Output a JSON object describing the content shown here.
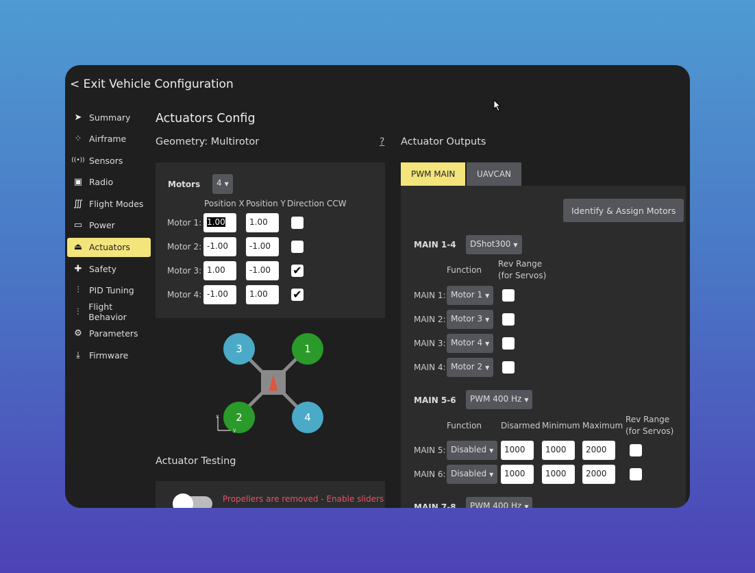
{
  "header": {
    "exit_label": "< Exit Vehicle Configuration"
  },
  "sidebar": {
    "items": [
      {
        "label": "Summary",
        "icon": "paper-plane-icon",
        "glyph": "➤"
      },
      {
        "label": "Airframe",
        "icon": "airframe-icon",
        "glyph": "⁘"
      },
      {
        "label": "Sensors",
        "icon": "sensors-icon",
        "glyph": "((•))"
      },
      {
        "label": "Radio",
        "icon": "radio-icon",
        "glyph": "▣"
      },
      {
        "label": "Flight Modes",
        "icon": "flight-modes-icon",
        "glyph": "∭"
      },
      {
        "label": "Power",
        "icon": "battery-icon",
        "glyph": "▭"
      },
      {
        "label": "Actuators",
        "icon": "actuators-icon",
        "glyph": "⏏"
      },
      {
        "label": "Safety",
        "icon": "first-aid-icon",
        "glyph": "✚"
      },
      {
        "label": "PID Tuning",
        "icon": "sliders-icon",
        "glyph": "⫶"
      },
      {
        "label": "Flight Behavior",
        "icon": "sliders-icon",
        "glyph": "⫶"
      },
      {
        "label": "Parameters",
        "icon": "gears-icon",
        "glyph": "⚙"
      },
      {
        "label": "Firmware",
        "icon": "download-icon",
        "glyph": "⤓"
      }
    ],
    "active": "Actuators"
  },
  "main": {
    "title": "Actuators Config",
    "geometry_title": "Geometry: Multirotor",
    "help": "?",
    "motors_label": "Motors",
    "motors_count": "4",
    "columns": [
      "Position X",
      "Position Y",
      "Direction CCW"
    ],
    "motors": [
      {
        "label": "Motor 1:",
        "x": "1.00",
        "y": "1.00",
        "ccw": false
      },
      {
        "label": "Motor 2:",
        "x": "-1.00",
        "y": "-1.00",
        "ccw": false
      },
      {
        "label": "Motor 3:",
        "x": "1.00",
        "y": "-1.00",
        "ccw": true
      },
      {
        "label": "Motor 4:",
        "x": "-1.00",
        "y": "1.00",
        "ccw": true
      }
    ],
    "diagram": {
      "rotors": [
        "3",
        "1",
        "2",
        "4"
      ],
      "axis_x": "x",
      "axis_y": "y",
      "cw_color": "#2a9a2a",
      "ccw_color": "#4aaac8"
    },
    "testing_title": "Actuator Testing",
    "testing_warning": "Propellers are removed - Enable sliders"
  },
  "outputs": {
    "title": "Actuator Outputs",
    "tabs": [
      "PWM MAIN",
      "UAVCAN"
    ],
    "active_tab": "PWM MAIN",
    "identify_button": "Identify & Assign Motors",
    "group1": {
      "label": "MAIN 1-4",
      "protocol": "DShot300",
      "col_function": "Function",
      "col_rev": "Rev Range",
      "col_rev2": "(for Servos)",
      "rows": [
        {
          "label": "MAIN 1:",
          "function": "Motor 1"
        },
        {
          "label": "MAIN 2:",
          "function": "Motor 3"
        },
        {
          "label": "MAIN 3:",
          "function": "Motor 4"
        },
        {
          "label": "MAIN 4:",
          "function": "Motor 2"
        }
      ]
    },
    "group2": {
      "label": "MAIN 5-6",
      "protocol": "PWM 400 Hz",
      "col_function": "Function",
      "col_disarmed": "Disarmed",
      "col_min": "Minimum",
      "col_max": "Maximum",
      "col_rev": "Rev Range",
      "col_rev2": "(for Servos)",
      "rows": [
        {
          "label": "MAIN 5:",
          "function": "Disabled",
          "disarmed": "1000",
          "min": "1000",
          "max": "2000"
        },
        {
          "label": "MAIN 6:",
          "function": "Disabled",
          "disarmed": "1000",
          "min": "1000",
          "max": "2000"
        }
      ]
    },
    "group3": {
      "label": "MAIN 7-8",
      "protocol": "PWM 400 Hz"
    }
  },
  "colors": {
    "accent": "#f3e57c",
    "warning": "#e0556a"
  }
}
